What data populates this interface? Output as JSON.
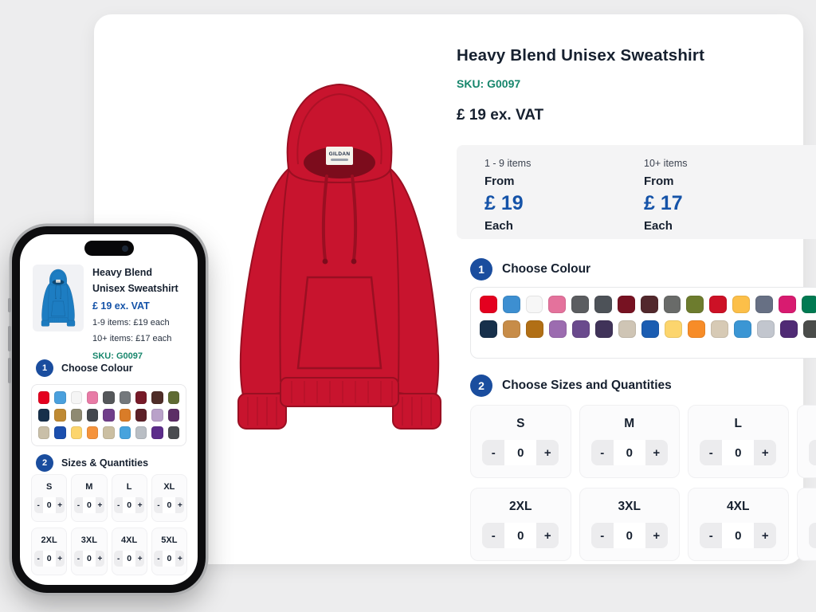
{
  "colors": {
    "page-bg": "#ededee",
    "card-bg": "#ffffff",
    "text-dark": "#16202f",
    "sku-teal": "#17866c",
    "price-blue": "#1553a8",
    "step-blue": "#1a4d9e",
    "panel-border": "#e7e8ea",
    "tier-box-bg": "#f4f4f5",
    "size-card-bg": "#fbfbfc",
    "stepper-btn-bg": "#ececee",
    "hoodie-red": "#c8142e",
    "hoodie-red-dark": "#9a0f22",
    "hoodie-red-deep": "#7c0c1c",
    "hoodie-blue": "#1d7dc2",
    "hoodie-blue-dark": "#135e96",
    "hoodie-blue-deep": "#0e4a77"
  },
  "product": {
    "title": "Heavy Blend Unisex Sweatshirt",
    "sku": "SKU: G0097",
    "price": "£ 19 ex. VAT",
    "brand_label": "GILDAN"
  },
  "pricing": {
    "tiers": [
      {
        "range": "1 - 9 items",
        "from_label": "From",
        "price": "£ 19",
        "unit": "Each"
      },
      {
        "range": "10+ items",
        "from_label": "From",
        "price": "£ 17",
        "unit": "Each"
      }
    ]
  },
  "steps": {
    "colour_number": "1",
    "colour_label": "Choose Colour",
    "sizes_number": "2",
    "sizes_label": "Choose Sizes and Quantities"
  },
  "colours": {
    "row1": [
      "#e4001f",
      "#3d8fd1",
      "#f7f7f7",
      "#e4729c",
      "#5b5d60",
      "#4d5258",
      "#771222",
      "#52282c",
      "#696b69",
      "#6d7c2e",
      "#cd1126",
      "#fcbf49",
      "#677084",
      "#d81b70",
      "#007a52",
      "#5ba4da",
      "#f2bac9",
      "#9b2335"
    ],
    "row2": [
      "#17304b",
      "#c78c48",
      "#b16f15",
      "#9c6cb0",
      "#6a4a8d",
      "#403359",
      "#cfc5b5",
      "#1b5db2",
      "#fcd56d",
      "#f78c28",
      "#d7cab5",
      "#3b96d4",
      "#c2c6ce",
      "#502b75",
      "#4a4c4a",
      "#8b93a1"
    ]
  },
  "sizes": {
    "labels": [
      "S",
      "M",
      "L",
      "XL",
      "2XL",
      "3XL",
      "4XL",
      "5XL"
    ],
    "qty": "0",
    "minus": "-",
    "plus": "+"
  },
  "phone": {
    "title_line1": "Heavy Blend",
    "title_line2": "Unisex Sweatshirt",
    "price": "£ 19 ex. VAT",
    "tier1": "1-9 items: £19 each",
    "tier2": "10+ items: £17 each",
    "sku": "SKU: G0097",
    "colour_step_number": "1",
    "colour_step_label": "Choose Colour",
    "sizes_step_number": "2",
    "sizes_step_label": "Sizes & Quantities",
    "colours": {
      "row1": [
        "#e4001f",
        "#4aa0dd",
        "#f5f5f5",
        "#e87ba6",
        "#55575a",
        "#74787c",
        "#771a28",
        "#4f2d28",
        "#5f6b33"
      ],
      "row2": [
        "#17304b",
        "#bf8a33",
        "#8f8a72",
        "#44484e",
        "#703e8a",
        "#d97c28",
        "#5c2028",
        "#b9a1c9",
        "#5c2d66"
      ],
      "row3": [
        "#c9bfa8",
        "#1b4fae",
        "#fcd56d",
        "#f5933c",
        "#cbbfa2",
        "#47a3dd",
        "#b9bec4",
        "#5c2d8a",
        "#4a4c50"
      ]
    }
  }
}
